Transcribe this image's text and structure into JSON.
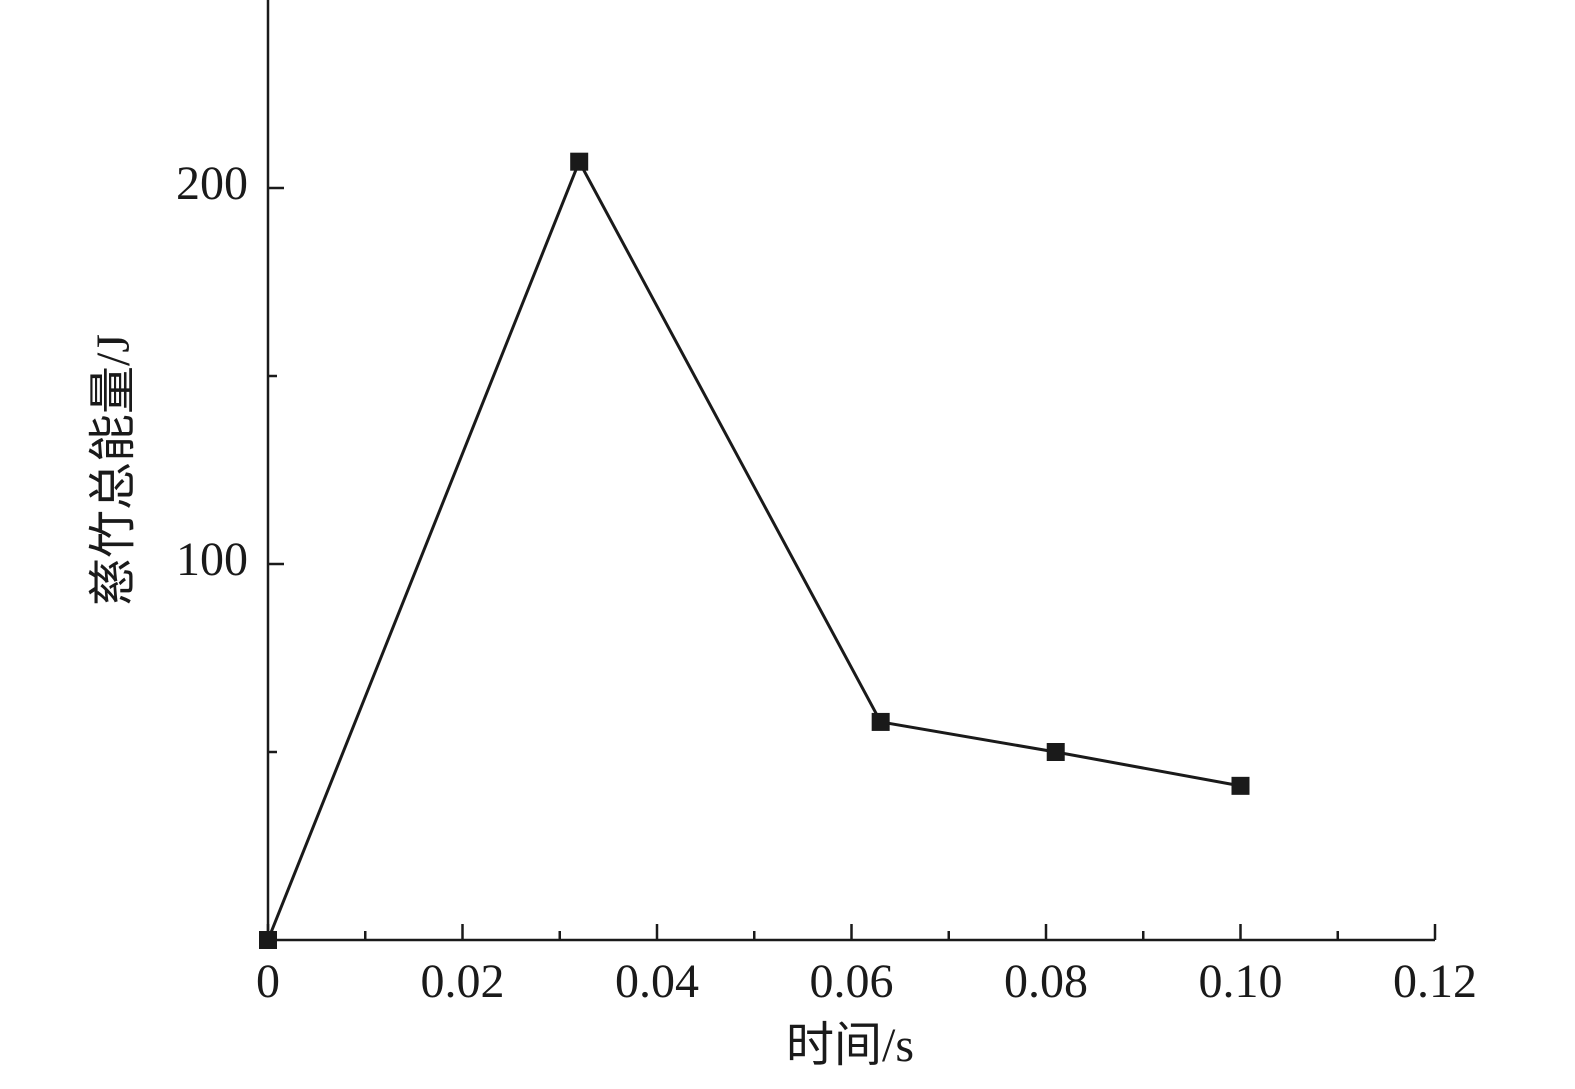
{
  "chart_data": {
    "type": "line",
    "x_label": "时间/s",
    "y_label": "慈竹总能量/J",
    "x": [
      0,
      0.032,
      0.063,
      0.081,
      0.1
    ],
    "series": [
      {
        "values": [
          0,
          207,
          58,
          50,
          41
        ],
        "color": "#1a1a1a",
        "marker": "square"
      }
    ],
    "xlim": [
      0,
      0.12
    ],
    "ylim": [
      0,
      250
    ],
    "xticks": [
      0,
      0.02,
      0.04,
      0.06,
      0.08,
      {
        "value": 0.1,
        "label": "0.10"
      },
      0.12
    ],
    "xminorticks": [
      0.01,
      0.03,
      0.05,
      0.07,
      0.09,
      0.11
    ],
    "yticks": [
      100,
      200
    ],
    "yminorticks": [
      50,
      150
    ]
  }
}
